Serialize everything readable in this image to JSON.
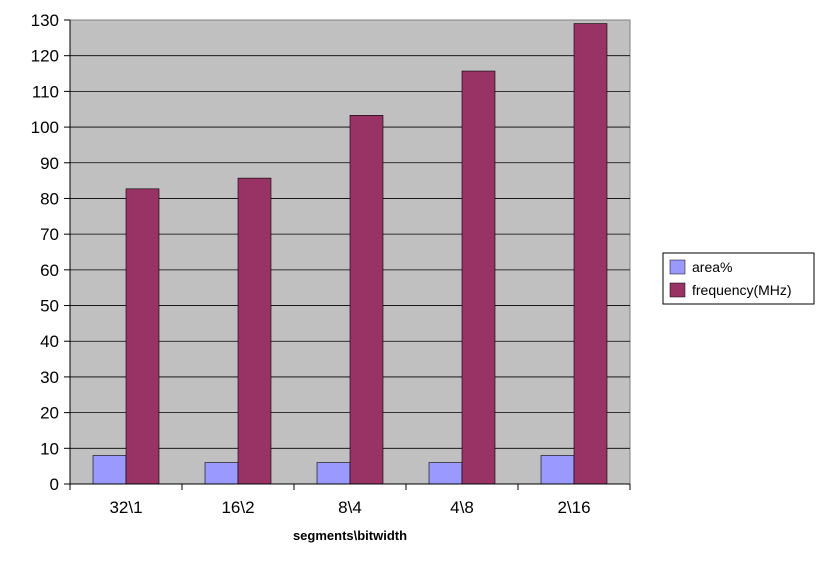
{
  "chart_data": {
    "type": "bar",
    "title": "",
    "xlabel": "segments\\bitwidth",
    "ylabel": "",
    "ylim": [
      0,
      130
    ],
    "ytick_step": 10,
    "grid": true,
    "legend_position": "right",
    "categories": [
      "32\\1",
      "16\\2",
      "8\\4",
      "4\\8",
      "2\\16"
    ],
    "series": [
      {
        "name": "area%",
        "color": "#9999ff",
        "values": [
          8,
          6,
          6,
          6,
          8
        ]
      },
      {
        "name": "frequency(MHz)",
        "color": "#993366",
        "values": [
          82.7,
          85.7,
          103.3,
          115.7,
          129
        ]
      }
    ],
    "plot_background": "#c0c0c0"
  }
}
